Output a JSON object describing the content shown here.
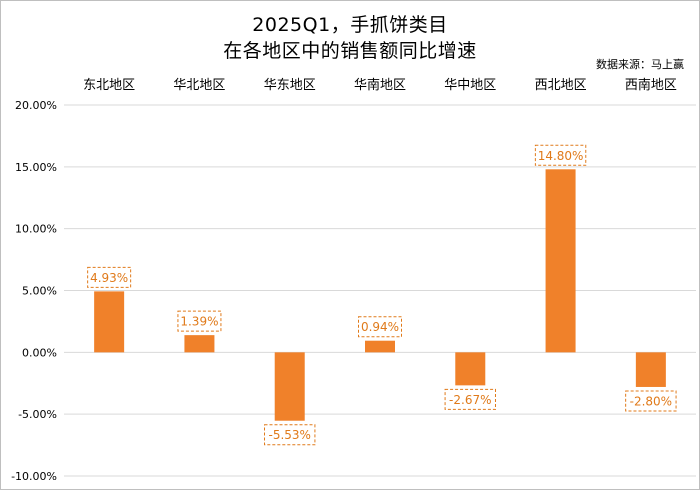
{
  "chart_data": {
    "type": "bar",
    "title": "2025Q1，手抓饼类目",
    "subtitle": "在各地区中的销售额同比增速",
    "source": "数据来源：马上赢",
    "categories": [
      "东北地区",
      "华北地区",
      "华东地区",
      "华南地区",
      "华中地区",
      "西北地区",
      "西南地区"
    ],
    "values": [
      4.93,
      1.39,
      -5.53,
      0.94,
      -2.67,
      14.8,
      -2.8
    ],
    "value_labels": [
      "4.93%",
      "1.39%",
      "-5.53%",
      "0.94%",
      "-2.67%",
      "14.80%",
      "-2.80%"
    ],
    "ylim": [
      -10,
      20
    ],
    "yticks": [
      20,
      15,
      10,
      5,
      0,
      -5,
      -10
    ],
    "ytick_labels": [
      "20.00%",
      "15.00%",
      "10.00%",
      "5.00%",
      "0.00%",
      "-5.00%",
      "-10.00%"
    ],
    "xlabel": "",
    "ylabel": "",
    "grid": true,
    "colors": {
      "bar": "#f0812a",
      "label": "#e07a1a",
      "grid": "#d9d9d9"
    }
  }
}
